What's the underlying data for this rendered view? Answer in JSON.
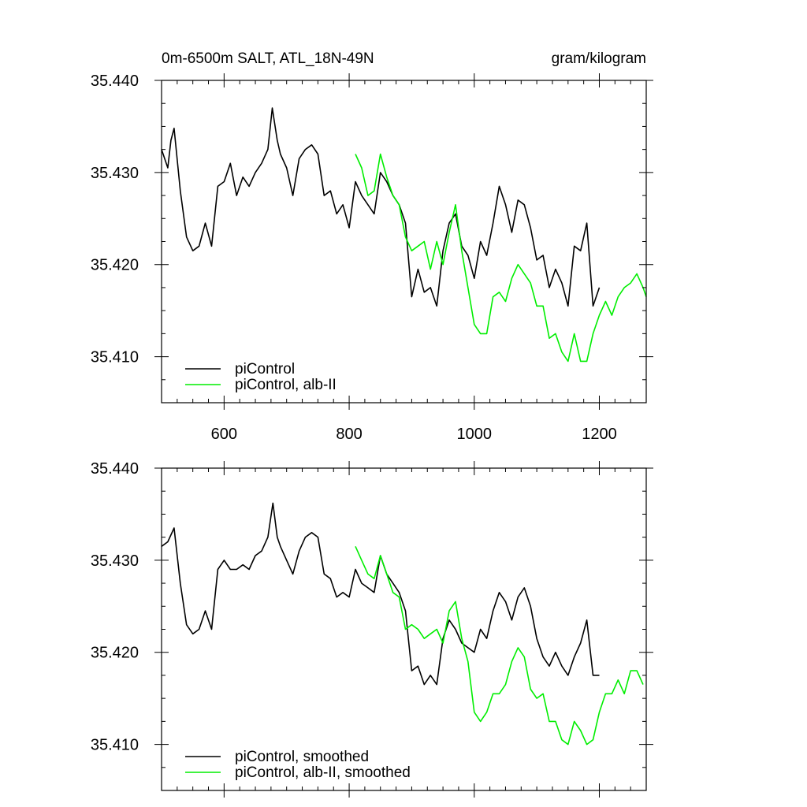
{
  "header": {
    "title_left": "0m-6500m SALT, ATL_18N-49N",
    "title_right": "gram/kilogram"
  },
  "colors": {
    "picontrol": "#000000",
    "alb_ii": "#00ee00",
    "frame": "#000000",
    "background": "#ffffff"
  },
  "chart_data": [
    {
      "type": "line",
      "title": "0m-6500m SALT, ATL_18N-49N",
      "units": "gram/kilogram",
      "xlim": [
        500,
        1275
      ],
      "ylim": [
        35.405,
        35.44
      ],
      "x_ticks": [
        600,
        800,
        1000,
        1200
      ],
      "x_tick_labels": [
        "600",
        "800",
        "1000",
        "1200"
      ],
      "y_ticks": [
        35.41,
        35.42,
        35.43,
        35.44
      ],
      "y_tick_labels": [
        "35.410",
        "35.420",
        "35.430",
        "35.440"
      ],
      "grid": false,
      "legend_position": "bottom-left",
      "legend": [
        "piControl",
        "piControl, alb-II"
      ],
      "series": [
        {
          "name": "piControl",
          "color": "#000000",
          "x": [
            500,
            510,
            515,
            520,
            530,
            540,
            550,
            560,
            570,
            580,
            590,
            600,
            610,
            620,
            630,
            640,
            650,
            660,
            670,
            677,
            685,
            690,
            700,
            710,
            720,
            730,
            740,
            750,
            760,
            770,
            780,
            790,
            800,
            810,
            820,
            830,
            840,
            850,
            860,
            870,
            880,
            890,
            900,
            910,
            920,
            930,
            940,
            950,
            960,
            970,
            980,
            990,
            1000,
            1010,
            1020,
            1030,
            1040,
            1050,
            1060,
            1070,
            1080,
            1090,
            1100,
            1110,
            1120,
            1130,
            1140,
            1150,
            1160,
            1170,
            1180,
            1190,
            1200
          ],
          "y": [
            35.4325,
            35.4305,
            35.4335,
            35.4348,
            35.428,
            35.423,
            35.4215,
            35.422,
            35.4245,
            35.422,
            35.4285,
            35.429,
            35.431,
            35.4275,
            35.4295,
            35.4285,
            35.43,
            35.431,
            35.4325,
            35.437,
            35.4335,
            35.432,
            35.4305,
            35.4275,
            35.4315,
            35.4325,
            35.433,
            35.432,
            35.4275,
            35.428,
            35.4255,
            35.4265,
            35.424,
            35.429,
            35.4275,
            35.4265,
            35.4255,
            35.43,
            35.429,
            35.4275,
            35.4265,
            35.4245,
            35.4165,
            35.4195,
            35.417,
            35.4175,
            35.4155,
            35.4215,
            35.4245,
            35.4255,
            35.422,
            35.421,
            35.4185,
            35.4225,
            35.421,
            35.4245,
            35.4285,
            35.4265,
            35.4235,
            35.427,
            35.4265,
            35.424,
            35.4205,
            35.421,
            35.4175,
            35.4195,
            35.418,
            35.4155,
            35.422,
            35.4215,
            35.4245,
            35.4155,
            35.4175
          ]
        },
        {
          "name": "piControl, alb-II",
          "color": "#00ee00",
          "x": [
            810,
            820,
            830,
            840,
            850,
            860,
            870,
            880,
            890,
            900,
            910,
            920,
            930,
            940,
            950,
            960,
            970,
            980,
            990,
            1000,
            1010,
            1020,
            1030,
            1040,
            1050,
            1060,
            1070,
            1080,
            1090,
            1100,
            1110,
            1120,
            1130,
            1140,
            1150,
            1160,
            1170,
            1180,
            1190,
            1200,
            1210,
            1220,
            1230,
            1240,
            1250,
            1260,
            1270,
            1275
          ],
          "y": [
            35.432,
            35.4305,
            35.4275,
            35.428,
            35.432,
            35.4295,
            35.4275,
            35.4265,
            35.423,
            35.4215,
            35.422,
            35.4225,
            35.4195,
            35.4225,
            35.42,
            35.4235,
            35.4265,
            35.4215,
            35.4175,
            35.4135,
            35.4125,
            35.4125,
            35.4165,
            35.417,
            35.416,
            35.4185,
            35.42,
            35.419,
            35.418,
            35.4155,
            35.4155,
            35.412,
            35.4125,
            35.4105,
            35.4095,
            35.4125,
            35.4095,
            35.4095,
            35.4125,
            35.4145,
            35.416,
            35.4145,
            35.4165,
            35.4175,
            35.418,
            35.419,
            35.4175,
            35.4165
          ]
        }
      ]
    },
    {
      "type": "line",
      "xlim": [
        500,
        1275
      ],
      "ylim": [
        35.405,
        35.44
      ],
      "x_ticks": [
        600,
        800,
        1000,
        1200
      ],
      "y_ticks": [
        35.41,
        35.42,
        35.43,
        35.44
      ],
      "y_tick_labels": [
        "35.410",
        "35.420",
        "35.430",
        "35.440"
      ],
      "grid": false,
      "legend_position": "bottom-left",
      "legend": [
        "piControl, smoothed",
        "piControl, alb-II, smoothed"
      ],
      "series": [
        {
          "name": "piControl, smoothed",
          "color": "#000000",
          "x": [
            500,
            510,
            520,
            530,
            540,
            550,
            560,
            570,
            580,
            590,
            600,
            610,
            620,
            630,
            640,
            650,
            660,
            670,
            678,
            685,
            690,
            700,
            710,
            720,
            730,
            740,
            750,
            760,
            770,
            780,
            790,
            800,
            810,
            820,
            830,
            840,
            850,
            860,
            870,
            880,
            890,
            900,
            910,
            920,
            930,
            940,
            950,
            960,
            970,
            980,
            990,
            1000,
            1010,
            1020,
            1030,
            1040,
            1050,
            1060,
            1070,
            1080,
            1090,
            1100,
            1110,
            1120,
            1130,
            1140,
            1150,
            1160,
            1170,
            1180,
            1190,
            1200
          ],
          "y": [
            35.4315,
            35.432,
            35.4335,
            35.4275,
            35.423,
            35.422,
            35.4225,
            35.4245,
            35.4225,
            35.429,
            35.43,
            35.429,
            35.429,
            35.4295,
            35.429,
            35.4305,
            35.431,
            35.4325,
            35.4362,
            35.4325,
            35.4315,
            35.43,
            35.4285,
            35.431,
            35.4325,
            35.433,
            35.4325,
            35.4285,
            35.428,
            35.426,
            35.4265,
            35.426,
            35.429,
            35.4275,
            35.427,
            35.4265,
            35.4305,
            35.4285,
            35.4275,
            35.4265,
            35.4245,
            35.418,
            35.4185,
            35.4165,
            35.4175,
            35.4165,
            35.4215,
            35.4235,
            35.4225,
            35.421,
            35.4205,
            35.42,
            35.4225,
            35.4215,
            35.4245,
            35.4265,
            35.4255,
            35.4235,
            35.426,
            35.427,
            35.425,
            35.4215,
            35.4195,
            35.4185,
            35.42,
            35.4185,
            35.4175,
            35.4195,
            35.421,
            35.4235,
            35.4175,
            35.4175
          ]
        },
        {
          "name": "piControl, alb-II, smoothed",
          "color": "#00ee00",
          "x": [
            810,
            820,
            830,
            840,
            850,
            860,
            870,
            880,
            890,
            900,
            910,
            920,
            930,
            940,
            950,
            960,
            970,
            980,
            990,
            1000,
            1010,
            1020,
            1030,
            1040,
            1050,
            1060,
            1070,
            1080,
            1090,
            1100,
            1110,
            1120,
            1130,
            1140,
            1150,
            1160,
            1170,
            1180,
            1190,
            1200,
            1210,
            1220,
            1230,
            1240,
            1250,
            1260,
            1270
          ],
          "y": [
            35.4315,
            35.43,
            35.4285,
            35.428,
            35.4305,
            35.4285,
            35.4265,
            35.426,
            35.4225,
            35.423,
            35.4225,
            35.4215,
            35.422,
            35.4225,
            35.421,
            35.4245,
            35.4255,
            35.4215,
            35.419,
            35.4135,
            35.4125,
            35.4135,
            35.4155,
            35.4155,
            35.4165,
            35.419,
            35.4205,
            35.4195,
            35.416,
            35.415,
            35.4155,
            35.4125,
            35.4125,
            35.4105,
            35.41,
            35.4125,
            35.4115,
            35.41,
            35.4105,
            35.4135,
            35.4155,
            35.4155,
            35.417,
            35.4155,
            35.418,
            35.418,
            35.4165
          ]
        }
      ]
    }
  ]
}
